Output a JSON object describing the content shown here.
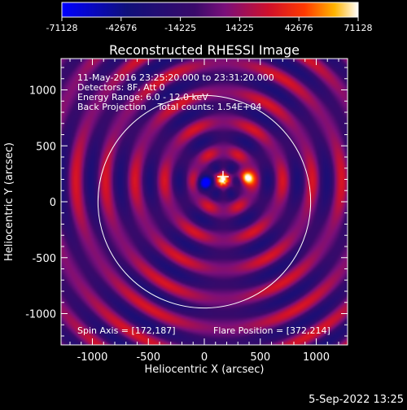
{
  "chart_data": {
    "type": "heatmap",
    "title": "Reconstructed RHESSI Image",
    "xlabel": "Heliocentric X (arcsec)",
    "ylabel": "Heliocentric Y (arcsec)",
    "xlim": [
      -1280,
      1280
    ],
    "ylim": [
      -1280,
      1280
    ],
    "xticks": [
      "-1000",
      "-500",
      "0",
      "500",
      "1000"
    ],
    "yticks": [
      "-1000",
      "-500",
      "0",
      "500",
      "1000"
    ],
    "colorbar": {
      "ticks": [
        "-71128",
        "-42676",
        "-14225",
        "14225",
        "42676",
        "71128"
      ],
      "min": -71128,
      "max": 71128
    },
    "annotations": [
      "11-May-2016 23:25:20.000 to 23:31:20.000",
      "Detectors: 8F, Att 0",
      "Energy Range: 6.0 - 12.0 keV",
      "Back Projection    Total counts: 1.54E+04"
    ],
    "spin_axis_label": "Spin Axis = [172,187]",
    "flare_position_label": "Flare Position = [372,214]",
    "spin_axis": [
      172,
      187
    ],
    "flare_position": [
      372,
      214
    ],
    "solar_disk_radius_arcsec": 950,
    "sources": [
      {
        "x": 372,
        "y": 214,
        "value": 71128
      },
      {
        "x": 160,
        "y": 200,
        "value": 60000
      },
      {
        "x": 0,
        "y": 165,
        "value": -71128
      }
    ],
    "grid": false
  },
  "footer": {
    "timestamp": "5-Sep-2022 13:25"
  },
  "colors": {
    "background": "#000000",
    "text": "#ffffff",
    "limb": "#ffffff"
  }
}
